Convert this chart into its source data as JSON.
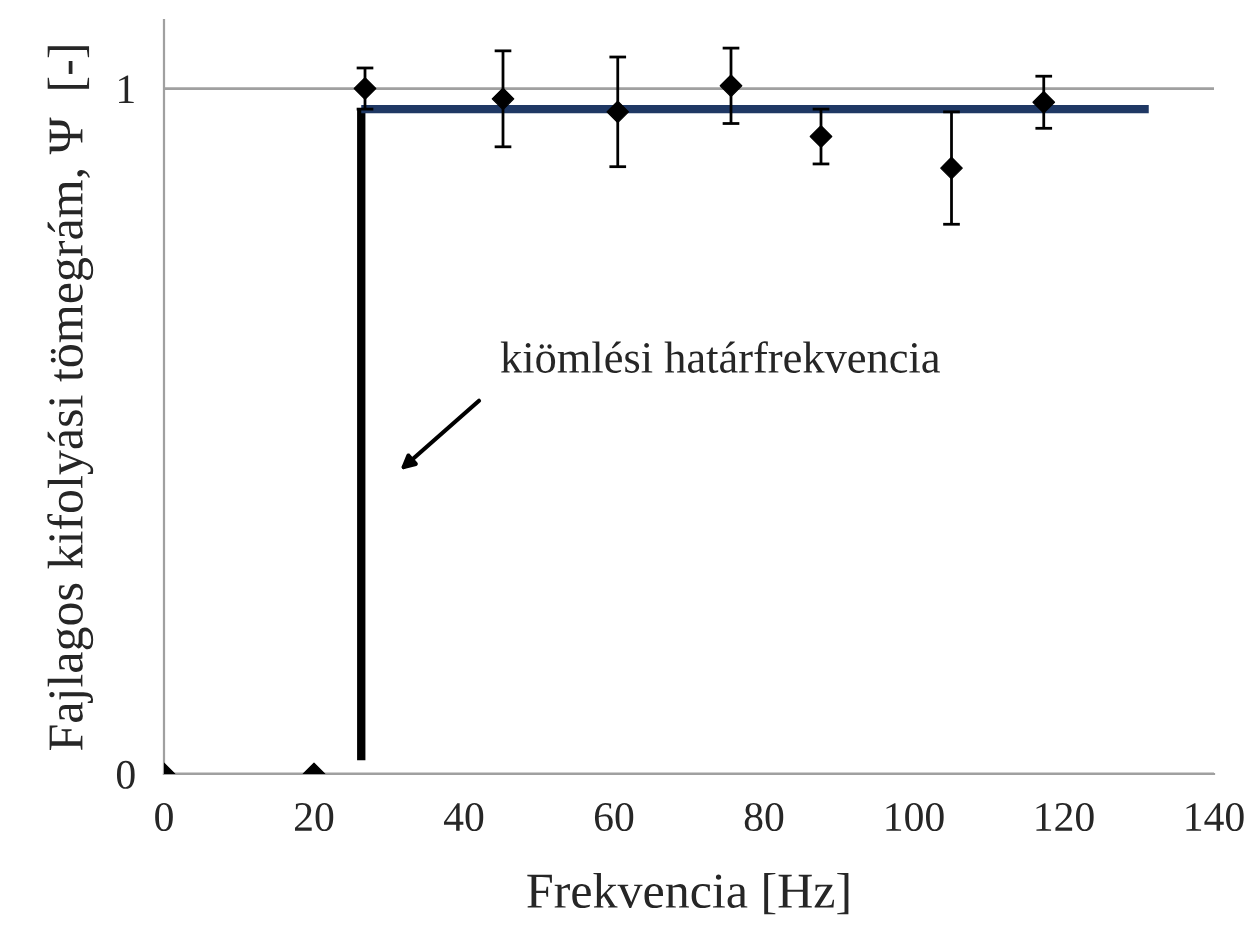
{
  "chart_data": {
    "type": "scatter",
    "xlabel": "Frekvencia [Hz]",
    "ylabel": "Fajlagos kifolyási tömegrám, Ψ  [-]",
    "xlim": [
      0,
      140
    ],
    "xticks": [
      0,
      20,
      40,
      60,
      80,
      100,
      120,
      140
    ],
    "ylim": [
      0,
      1.1
    ],
    "yticks": [
      0,
      1
    ],
    "grid": "y",
    "series": [
      {
        "type": "line",
        "color": "#000000",
        "x": [
          26.3,
          26.3
        ],
        "values": [
          0.02,
          0.97
        ]
      },
      {
        "type": "line",
        "color": "#1f3864",
        "x": [
          26.3,
          131.3
        ],
        "values": [
          0.97,
          0.97
        ]
      },
      {
        "marker": "diamond",
        "color": "#000000",
        "x": [
          0,
          20,
          26.8,
          45.2,
          60.5,
          75.6,
          87.6,
          105,
          117.3
        ],
        "values": [
          0,
          0,
          1.0,
          0.985,
          0.966,
          1.004,
          0.93,
          0.884,
          0.98
        ],
        "errors": [
          null,
          null,
          0.03,
          0.07,
          0.08,
          0.055,
          0.04,
          0.082,
          0.038
        ]
      }
    ],
    "annotations": [
      "kiömlési határfrekvencia"
    ]
  }
}
